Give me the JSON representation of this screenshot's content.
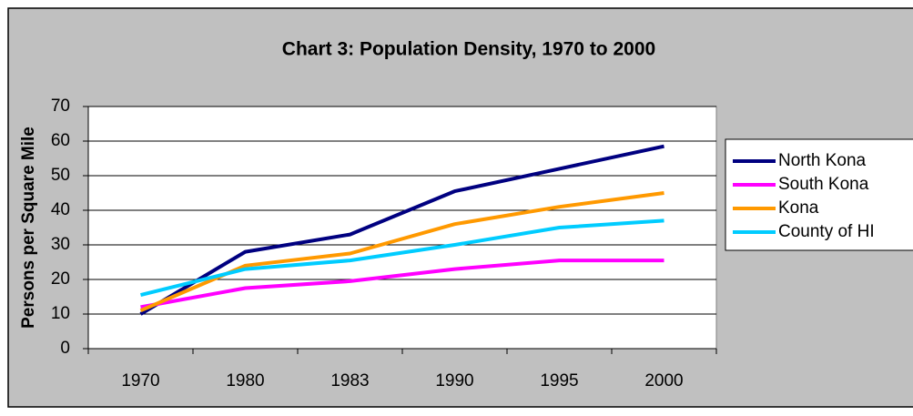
{
  "chart_data": {
    "type": "line",
    "title": "Chart 3: Population Density, 1970 to 2000",
    "y_label": "Persons per Square Mile",
    "categories": [
      "1970",
      "1980",
      "1983",
      "1990",
      "1995",
      "2000"
    ],
    "series": [
      {
        "name": "North Kona",
        "color": "#000080",
        "values": [
          10,
          28,
          33,
          45.5,
          52,
          58.5
        ]
      },
      {
        "name": "South Kona",
        "color": "#ff00ff",
        "values": [
          12,
          17.5,
          19.5,
          23,
          25.5,
          25.5
        ]
      },
      {
        "name": "Kona",
        "color": "#ff9900",
        "values": [
          11,
          24,
          27.5,
          36,
          41,
          45
        ]
      },
      {
        "name": "County of HI",
        "color": "#00ccff",
        "values": [
          15.5,
          23,
          25.5,
          30,
          35,
          37
        ]
      }
    ],
    "ylim": [
      0,
      70
    ],
    "yticks": [
      0,
      10,
      20,
      30,
      40,
      50,
      60,
      70
    ],
    "grid": true,
    "legend": "right"
  }
}
